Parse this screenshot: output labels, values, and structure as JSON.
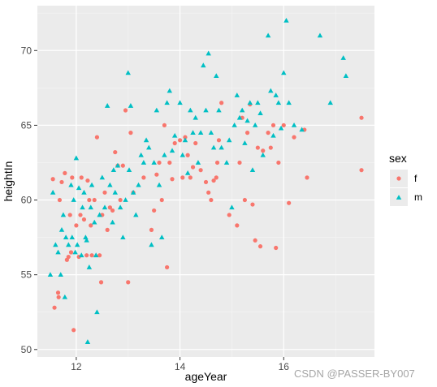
{
  "watermark": "CSDN @PASSER-BY007",
  "chart_data": {
    "type": "scatter",
    "title": "",
    "xlabel": "ageYear",
    "ylabel": "heightIn",
    "xlim": [
      11.25,
      17.75
    ],
    "ylim": [
      49.5,
      73.0
    ],
    "xticks": [
      12,
      14,
      16
    ],
    "yticks": [
      50,
      55,
      60,
      65,
      70
    ],
    "grid": true,
    "legend": {
      "title": "sex",
      "position": "right"
    },
    "series": [
      {
        "name": "f",
        "color": "#F8766D",
        "marker": "circle",
        "points": [
          [
            11.55,
            61.4
          ],
          [
            11.58,
            52.8
          ],
          [
            11.65,
            53.8
          ],
          [
            11.66,
            53.5
          ],
          [
            11.68,
            60.0
          ],
          [
            11.72,
            61.2
          ],
          [
            11.78,
            61.8
          ],
          [
            11.82,
            56.0
          ],
          [
            11.85,
            56.2
          ],
          [
            11.88,
            59.0
          ],
          [
            11.9,
            56.5
          ],
          [
            11.92,
            61.5
          ],
          [
            11.95,
            51.3
          ],
          [
            12.0,
            58.3
          ],
          [
            12.05,
            56.2
          ],
          [
            12.08,
            59.0
          ],
          [
            12.1,
            61.5
          ],
          [
            12.15,
            58.7
          ],
          [
            12.2,
            56.3
          ],
          [
            12.22,
            61.3
          ],
          [
            12.25,
            60.0
          ],
          [
            12.28,
            58.3
          ],
          [
            12.3,
            56.3
          ],
          [
            12.35,
            60.0
          ],
          [
            12.4,
            64.2
          ],
          [
            12.45,
            56.3
          ],
          [
            12.48,
            54.5
          ],
          [
            12.5,
            59.0
          ],
          [
            12.55,
            60.5
          ],
          [
            12.6,
            58.0
          ],
          [
            12.65,
            59.5
          ],
          [
            12.7,
            59.3
          ],
          [
            12.75,
            63.2
          ],
          [
            12.8,
            62.3
          ],
          [
            12.85,
            60.0
          ],
          [
            12.9,
            62.3
          ],
          [
            12.95,
            66.0
          ],
          [
            13.0,
            54.5
          ],
          [
            13.05,
            64.5
          ],
          [
            13.1,
            60.5
          ],
          [
            13.3,
            61.5
          ],
          [
            13.45,
            58.0
          ],
          [
            13.5,
            59.3
          ],
          [
            13.55,
            61.7
          ],
          [
            13.6,
            62.5
          ],
          [
            13.65,
            60.0
          ],
          [
            13.7,
            65.0
          ],
          [
            13.75,
            55.5
          ],
          [
            13.8,
            62.5
          ],
          [
            13.85,
            61.4
          ],
          [
            13.9,
            63.8
          ],
          [
            14.0,
            64.0
          ],
          [
            14.05,
            61.5
          ],
          [
            14.1,
            64.2
          ],
          [
            14.15,
            63.0
          ],
          [
            14.2,
            61.5
          ],
          [
            14.25,
            62.2
          ],
          [
            14.3,
            63.8
          ],
          [
            14.4,
            62.0
          ],
          [
            14.5,
            61.2
          ],
          [
            14.55,
            60.5
          ],
          [
            14.6,
            60.0
          ],
          [
            14.65,
            61.3
          ],
          [
            14.7,
            61.5
          ],
          [
            14.72,
            62.5
          ],
          [
            14.75,
            64.0
          ],
          [
            14.8,
            66.5
          ],
          [
            14.95,
            59.0
          ],
          [
            15.1,
            58.3
          ],
          [
            15.15,
            62.5
          ],
          [
            15.2,
            65.5
          ],
          [
            15.25,
            60.0
          ],
          [
            15.3,
            64.5
          ],
          [
            15.35,
            66.4
          ],
          [
            15.4,
            59.7
          ],
          [
            15.45,
            57.3
          ],
          [
            15.5,
            63.5
          ],
          [
            15.55,
            56.9
          ],
          [
            15.6,
            63.3
          ],
          [
            15.7,
            64.5
          ],
          [
            15.75,
            63.5
          ],
          [
            15.8,
            65.0
          ],
          [
            15.85,
            56.8
          ],
          [
            15.9,
            62.5
          ],
          [
            16.0,
            65.0
          ],
          [
            16.1,
            59.8
          ],
          [
            16.2,
            64.2
          ],
          [
            16.4,
            64.7
          ],
          [
            16.45,
            61.5
          ],
          [
            17.5,
            65.5
          ],
          [
            17.5,
            62.0
          ]
        ]
      },
      {
        "name": "m",
        "color": "#00BFC4",
        "marker": "triangle",
        "points": [
          [
            11.5,
            55.0
          ],
          [
            11.55,
            60.5
          ],
          [
            11.6,
            57.0
          ],
          [
            11.65,
            56.5
          ],
          [
            11.7,
            55.0
          ],
          [
            11.72,
            58.0
          ],
          [
            11.75,
            59.0
          ],
          [
            11.78,
            53.5
          ],
          [
            11.8,
            57.5
          ],
          [
            11.85,
            57.0
          ],
          [
            11.9,
            61.0
          ],
          [
            11.92,
            57.5
          ],
          [
            11.95,
            60.0
          ],
          [
            11.98,
            56.5
          ],
          [
            12.0,
            62.8
          ],
          [
            12.02,
            57.0
          ],
          [
            12.05,
            60.8
          ],
          [
            12.1,
            56.3
          ],
          [
            12.12,
            59.5
          ],
          [
            12.15,
            60.5
          ],
          [
            12.18,
            57.5
          ],
          [
            12.2,
            57.3
          ],
          [
            12.22,
            50.5
          ],
          [
            12.25,
            55.5
          ],
          [
            12.28,
            59.5
          ],
          [
            12.3,
            61.0
          ],
          [
            12.35,
            58.5
          ],
          [
            12.38,
            56.3
          ],
          [
            12.4,
            52.5
          ],
          [
            12.45,
            59.0
          ],
          [
            12.5,
            61.5
          ],
          [
            12.55,
            59.5
          ],
          [
            12.6,
            66.3
          ],
          [
            12.65,
            61.0
          ],
          [
            12.7,
            58.5
          ],
          [
            12.72,
            62.0
          ],
          [
            12.75,
            60.5
          ],
          [
            12.8,
            62.3
          ],
          [
            12.85,
            59.5
          ],
          [
            12.9,
            57.5
          ],
          [
            12.95,
            60.0
          ],
          [
            13.0,
            68.5
          ],
          [
            13.02,
            62.0
          ],
          [
            13.05,
            66.3
          ],
          [
            13.1,
            60.5
          ],
          [
            13.15,
            59.0
          ],
          [
            13.2,
            61.0
          ],
          [
            13.25,
            63.0
          ],
          [
            13.3,
            62.5
          ],
          [
            13.35,
            64.0
          ],
          [
            13.4,
            63.5
          ],
          [
            13.45,
            57.0
          ],
          [
            13.5,
            62.5
          ],
          [
            13.55,
            66.0
          ],
          [
            13.6,
            61.0
          ],
          [
            13.65,
            57.5
          ],
          [
            13.7,
            63.0
          ],
          [
            13.75,
            66.5
          ],
          [
            13.8,
            67.3
          ],
          [
            13.85,
            63.3
          ],
          [
            13.9,
            64.3
          ],
          [
            14.0,
            66.5
          ],
          [
            14.05,
            63.0
          ],
          [
            14.1,
            64.0
          ],
          [
            14.15,
            61.8
          ],
          [
            14.2,
            66.0
          ],
          [
            14.25,
            64.5
          ],
          [
            14.3,
            65.5
          ],
          [
            14.35,
            62.5
          ],
          [
            14.4,
            64.5
          ],
          [
            14.45,
            69.0
          ],
          [
            14.5,
            66.0
          ],
          [
            14.55,
            69.8
          ],
          [
            14.6,
            64.5
          ],
          [
            14.65,
            63.5
          ],
          [
            14.7,
            68.3
          ],
          [
            14.75,
            66.0
          ],
          [
            14.8,
            63.5
          ],
          [
            14.9,
            62.5
          ],
          [
            14.95,
            64.0
          ],
          [
            15.0,
            59.5
          ],
          [
            15.05,
            65.0
          ],
          [
            15.1,
            67.0
          ],
          [
            15.15,
            65.5
          ],
          [
            15.2,
            66.0
          ],
          [
            15.25,
            63.8
          ],
          [
            15.3,
            65.3
          ],
          [
            15.35,
            66.5
          ],
          [
            15.4,
            62.0
          ],
          [
            15.45,
            65.0
          ],
          [
            15.5,
            66.5
          ],
          [
            15.55,
            65.8
          ],
          [
            15.6,
            63.0
          ],
          [
            15.7,
            71.0
          ],
          [
            15.75,
            67.3
          ],
          [
            15.8,
            64.3
          ],
          [
            15.85,
            67.0
          ],
          [
            15.9,
            66.5
          ],
          [
            15.95,
            64.8
          ],
          [
            16.0,
            68.5
          ],
          [
            16.05,
            72.0
          ],
          [
            16.1,
            66.5
          ],
          [
            16.2,
            65.0
          ],
          [
            16.35,
            64.7
          ],
          [
            16.7,
            71.0
          ],
          [
            16.9,
            66.5
          ],
          [
            17.15,
            69.5
          ],
          [
            17.2,
            68.3
          ]
        ]
      }
    ]
  }
}
